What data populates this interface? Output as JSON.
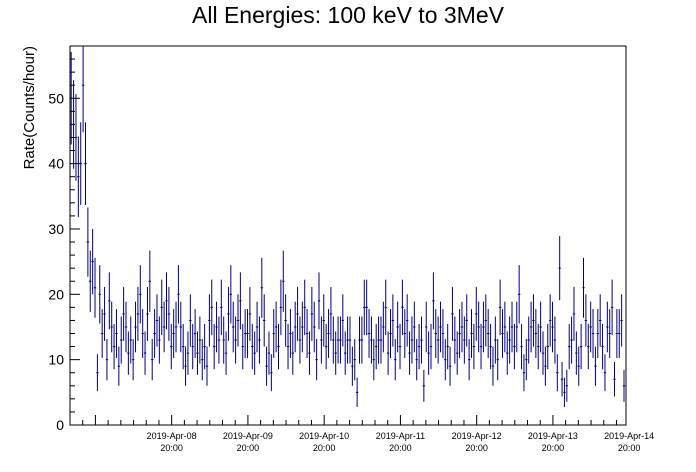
{
  "chart_data": {
    "type": "scatter",
    "title": "All Energies:  100 keV to 3MeV",
    "xlabel": "",
    "ylabel": "Rate(Counts/hour)",
    "ylim": [
      0,
      58
    ],
    "xlim": [
      "2019-04-07 12:00",
      "2019-04-14 19:00"
    ],
    "y_ticks": [
      0,
      10,
      20,
      30,
      40,
      50
    ],
    "x_tick_labels": [
      {
        "date": "2019-Apr-08",
        "time": "20:00"
      },
      {
        "date": "2019-Apr-09",
        "time": "20:00"
      },
      {
        "date": "2019-Apr-10",
        "time": "20:00"
      },
      {
        "date": "2019-Apr-11",
        "time": "20:00"
      },
      {
        "date": "2019-Apr-12",
        "time": "20:00"
      },
      {
        "date": "2019-Apr-13",
        "time": "20:00"
      },
      {
        "date": "2019-Apr-14",
        "time": "20:00"
      }
    ],
    "grid": false,
    "marker_color": "#000080",
    "bin_width_hours": 0.75,
    "series": [
      {
        "error_bars": "sqrt",
        "values": [
          50,
          46,
          44,
          38,
          40,
          52,
          40,
          28,
          22,
          25,
          21,
          8,
          20,
          14,
          17,
          10,
          19,
          15,
          12,
          14,
          9,
          13,
          17,
          15,
          11,
          13,
          10,
          15,
          17,
          20,
          14,
          11,
          17,
          22,
          10,
          14,
          16,
          13,
          18,
          15,
          19,
          17,
          12,
          14,
          15,
          20,
          15,
          12,
          9,
          11,
          16,
          12,
          14,
          11,
          13,
          10,
          12,
          9,
          16,
          18,
          12,
          15,
          13,
          18,
          13,
          11,
          17,
          20,
          15,
          13,
          16,
          19,
          12,
          14,
          14,
          17,
          12,
          11,
          15,
          13,
          21,
          16,
          9,
          11,
          8,
          14,
          15,
          12,
          18,
          22,
          16,
          12,
          14,
          11,
          15,
          17,
          13,
          15,
          18,
          14,
          11,
          17,
          15,
          10,
          19,
          13,
          16,
          12,
          14,
          17,
          13,
          11,
          13,
          13,
          16,
          11,
          13,
          13,
          9,
          10,
          5,
          13,
          13,
          18,
          18,
          14,
          13,
          10,
          12,
          13,
          13,
          15,
          18,
          11,
          14,
          16,
          10,
          15,
          12,
          18,
          14,
          16,
          11,
          13,
          15,
          10,
          12,
          13,
          6,
          15,
          11,
          12,
          19,
          14,
          13,
          15,
          14,
          10,
          12,
          9,
          17,
          13,
          11,
          14,
          15,
          13,
          16,
          10,
          14,
          12,
          17,
          15,
          12,
          15,
          16,
          14,
          12,
          9,
          13,
          10,
          18,
          14,
          15,
          11,
          13,
          15,
          12,
          15,
          20,
          12,
          8,
          10,
          13,
          15,
          16,
          14,
          12,
          15,
          11,
          9,
          12,
          16,
          15,
          13,
          8,
          24,
          7,
          5,
          6,
          12,
          13,
          17,
          11,
          9,
          12,
          21,
          16,
          12,
          15,
          14,
          9,
          14,
          16,
          12,
          8,
          15,
          14,
          18,
          7,
          14,
          14,
          16,
          6,
          5,
          7
        ]
      }
    ]
  }
}
